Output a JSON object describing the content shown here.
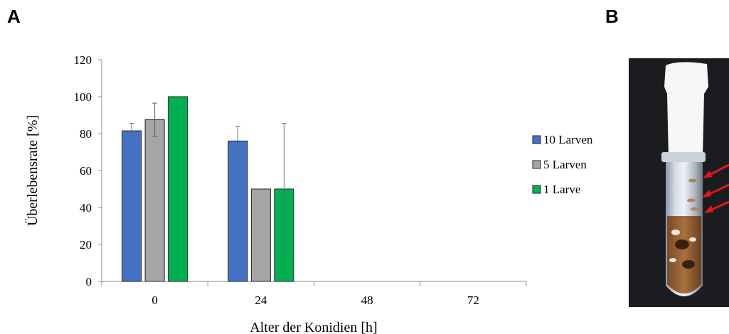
{
  "panels": {
    "a_label": "A",
    "b_label": "B"
  },
  "chart_data": {
    "type": "bar",
    "title": "",
    "xlabel": "Alter der Konidien [h]",
    "ylabel": "Überlebensrate [%]",
    "categories": [
      "0",
      "24",
      "48",
      "72"
    ],
    "ylim": [
      0,
      120
    ],
    "yticks": [
      0,
      20,
      40,
      60,
      80,
      100,
      120
    ],
    "grid": false,
    "legend_position": "right",
    "series": [
      {
        "name": "10 Larven",
        "color": "#4472c4",
        "values": [
          81.5,
          76,
          0,
          0
        ],
        "errors": [
          4,
          8,
          0,
          0
        ]
      },
      {
        "name": "5 Larven",
        "color": "#a5a5a5",
        "values": [
          87.5,
          50,
          0,
          0
        ],
        "errors": [
          9,
          0,
          0,
          0
        ]
      },
      {
        "name": "1 Larve",
        "color": "#00b050",
        "values": [
          100,
          50,
          0,
          0
        ],
        "errors": [
          0,
          35.5,
          0,
          0
        ]
      }
    ]
  },
  "photo": {
    "description_icon": "larvae-tube-photo",
    "arrow_color": "#e8141c"
  }
}
